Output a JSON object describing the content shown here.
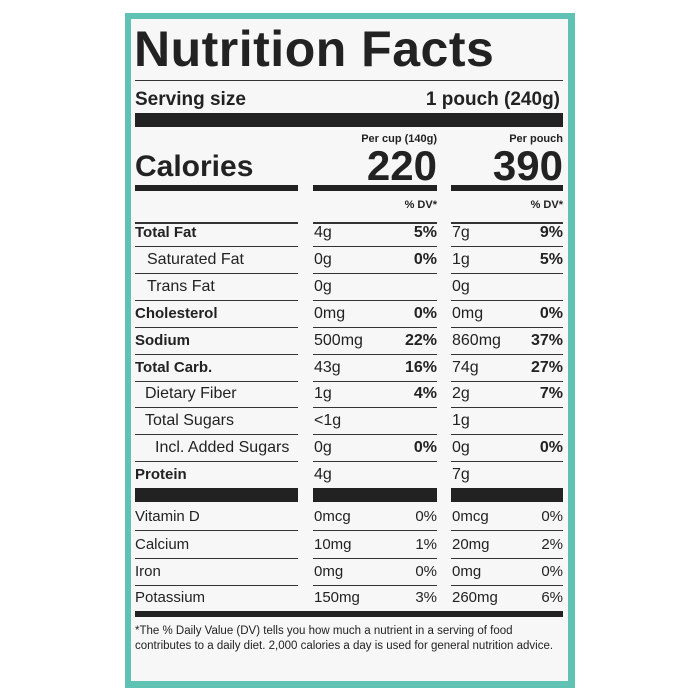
{
  "title": "Nutrition Facts",
  "serving_size": {
    "label": "Serving size",
    "value": "1 pouch (240g)"
  },
  "calories": {
    "label": "Calories",
    "cup_header": "Per cup (140g)",
    "cup": "220",
    "pouch_header": "Per pouch",
    "pouch": "390"
  },
  "dv_header": "% DV*",
  "rows": [
    {
      "name": "Total Fat",
      "cup": "4g",
      "cup_dv": "5%",
      "pouch": "7g",
      "pouch_dv": "9%"
    },
    {
      "name": "Saturated Fat",
      "cup": "0g",
      "cup_dv": "0%",
      "pouch": "1g",
      "pouch_dv": "5%"
    },
    {
      "name": "Trans Fat",
      "cup": "0g",
      "cup_dv": null,
      "pouch": "0g",
      "pouch_dv": null
    },
    {
      "name": "Cholesterol",
      "cup": "0mg",
      "cup_dv": "0%",
      "pouch": "0mg",
      "pouch_dv": "0%"
    },
    {
      "name": "Sodium",
      "cup": "500mg",
      "cup_dv": "22%",
      "pouch": "860mg",
      "pouch_dv": "37%"
    },
    {
      "name": "Total Carb.",
      "cup": "43g",
      "cup_dv": "16%",
      "pouch": "74g",
      "pouch_dv": "27%"
    },
    {
      "name": "Dietary Fiber",
      "cup": "1g",
      "cup_dv": "4%",
      "pouch": "2g",
      "pouch_dv": "7%"
    },
    {
      "name": "Total Sugars",
      "cup": "<1g",
      "cup_dv": null,
      "pouch": "1g",
      "pouch_dv": null
    },
    {
      "name": "Incl. Added Sugars",
      "cup": "0g",
      "cup_dv": "0%",
      "pouch": "0g",
      "pouch_dv": "0%"
    },
    {
      "name": "Protein",
      "cup": "4g",
      "cup_dv": null,
      "pouch": "7g",
      "pouch_dv": null
    },
    {
      "name": "Vitamin D",
      "cup": "0mcg",
      "cup_dv": "0%",
      "pouch": "0mcg",
      "pouch_dv": "0%"
    },
    {
      "name": "Calcium",
      "cup": "10mg",
      "cup_dv": "1%",
      "pouch": "20mg",
      "pouch_dv": "2%"
    },
    {
      "name": "Iron",
      "cup": "0mg",
      "cup_dv": "0%",
      "pouch": "0mg",
      "pouch_dv": "0%"
    },
    {
      "name": "Potassium",
      "cup": "150mg",
      "cup_dv": "3%",
      "pouch": "260mg",
      "pouch_dv": "6%"
    }
  ],
  "footnote": "*The % Daily Value (DV) tells you how much a nutrient in a serving of food contributes to a daily diet. 2,000 calories a day is used for general nutrition advice."
}
